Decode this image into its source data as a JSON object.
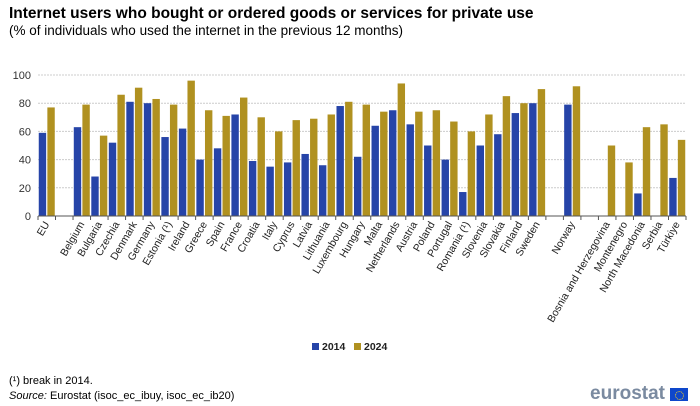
{
  "title": "Internet users who bought or ordered goods or services for private use",
  "subtitle": "(% of individuals who used the internet in the previous 12 months)",
  "footnote": "(¹) break in 2014.",
  "source_label": "Source:",
  "source": "Eurostat (isoc_ec_ibuy, isoc_ec_ib20)",
  "logo_text": "eurostat",
  "chart_data": {
    "type": "bar",
    "title": "",
    "xlabel": "",
    "ylabel": "",
    "ylim": [
      0,
      100
    ],
    "yticks": [
      0,
      20,
      40,
      60,
      80,
      100
    ],
    "grid": true,
    "legend_position": "bottom",
    "categories": [
      "EU",
      "",
      "Belgium",
      "Bulgaria",
      "Czechia",
      "Denmark",
      "Germany",
      "Estonia (¹)",
      "Ireland",
      "Greece",
      "Spain",
      "France",
      "Croatia",
      "Italy",
      "Cyprus",
      "Latvia",
      "Lithuania",
      "Luxembourg",
      "Hungary",
      "Malta",
      "Netherlands",
      "Austria",
      "Poland",
      "Portugal",
      "Romania (¹)",
      "Slovenia",
      "Slovakia",
      "Finland",
      "Sweden",
      "",
      "Norway",
      "",
      "Bosnia and Herzegovina",
      "Montenegro",
      "North Macedonia",
      "Serbia",
      "Türkiye"
    ],
    "series": [
      {
        "name": "2014",
        "color": "#2644a8",
        "values": [
          59,
          null,
          63,
          28,
          52,
          81,
          80,
          56,
          62,
          40,
          48,
          72,
          39,
          35,
          38,
          44,
          36,
          78,
          42,
          64,
          75,
          65,
          50,
          40,
          17,
          50,
          58,
          73,
          80,
          null,
          79,
          null,
          null,
          null,
          16,
          null,
          27
        ]
      },
      {
        "name": "2024",
        "color": "#b09120",
        "values": [
          77,
          null,
          79,
          57,
          86,
          91,
          83,
          79,
          96,
          75,
          71,
          84,
          70,
          60,
          68,
          69,
          72,
          81,
          79,
          74,
          94,
          74,
          75,
          67,
          60,
          72,
          85,
          80,
          90,
          null,
          92,
          null,
          50,
          38,
          63,
          65,
          54
        ]
      }
    ]
  }
}
